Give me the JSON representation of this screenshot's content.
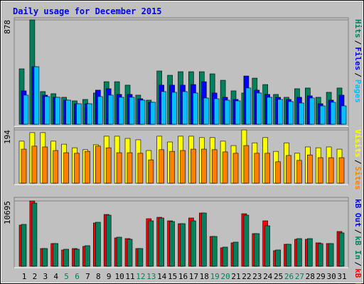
{
  "title": "Daily usage for December 2015",
  "categories": [
    "1",
    "2",
    "3",
    "4",
    "5",
    "6",
    "7",
    "8",
    "9",
    "10",
    "11",
    "12",
    "13",
    "14",
    "15",
    "16",
    "17",
    "18",
    "19",
    "20",
    "21",
    "22",
    "23",
    "24",
    "25",
    "26",
    "27",
    "28",
    "29",
    "30",
    "31"
  ],
  "weekend_indices": [
    4,
    5,
    11,
    12,
    18,
    19,
    25,
    26
  ],
  "weekday_color": "#000000",
  "weekend_color": "#00805c",
  "legend_separator": "/",
  "chart_data": [
    {
      "type": "bar",
      "ylim": [
        0,
        878
      ],
      "yticks": [
        878
      ],
      "legend_reverse": false,
      "series": [
        {
          "name": "Hits",
          "color": "#00805c",
          "values": [
            466,
            878,
            275,
            257,
            227,
            197,
            209,
            263,
            358,
            358,
            329,
            245,
            203,
            448,
            412,
            442,
            442,
            442,
            424,
            370,
            281,
            263,
            388,
            334,
            251,
            227,
            299,
            305,
            227,
            269,
            305
          ]
        },
        {
          "name": "Files",
          "color": "#0000ff",
          "values": [
            281,
            484,
            245,
            227,
            203,
            173,
            173,
            287,
            299,
            251,
            251,
            215,
            185,
            329,
            329,
            329,
            334,
            358,
            263,
            227,
            209,
            406,
            287,
            251,
            227,
            209,
            227,
            239,
            173,
            203,
            245
          ]
        },
        {
          "name": "Pages",
          "color": "#00c0ff",
          "values": [
            245,
            484,
            233,
            227,
            203,
            173,
            173,
            233,
            245,
            227,
            227,
            203,
            185,
            275,
            269,
            275,
            263,
            221,
            215,
            203,
            197,
            305,
            263,
            227,
            209,
            191,
            179,
            221,
            155,
            185,
            155
          ]
        }
      ]
    },
    {
      "type": "bar",
      "ylim": [
        0,
        194
      ],
      "yticks": [
        194
      ],
      "legend_reverse": false,
      "series": [
        {
          "name": "Visits",
          "color": "#ffff00",
          "values": [
            153,
            184,
            184,
            153,
            142,
            129,
            122,
            140,
            171,
            171,
            163,
            158,
            119,
            171,
            150,
            171,
            171,
            166,
            166,
            153,
            137,
            194,
            147,
            166,
            116,
            147,
            109,
            132,
            129,
            132,
            124
          ]
        },
        {
          "name": "Sites",
          "color": "#ff8000",
          "values": [
            124,
            135,
            132,
            119,
            111,
            109,
            116,
            135,
            129,
            111,
            111,
            109,
            85,
            122,
            116,
            119,
            124,
            124,
            122,
            114,
            109,
            137,
            109,
            109,
            78,
            101,
            83,
            103,
            93,
            93,
            93
          ]
        }
      ]
    },
    {
      "type": "bar",
      "ylim": [
        0,
        10695
      ],
      "yticks": [
        10695
      ],
      "legend_reverse": true,
      "series": [
        {
          "name": "kB F",
          "color": "#ff0000",
          "values": [
            6743,
            10695,
            2906,
            3720,
            2674,
            2906,
            3255,
            7091,
            8486,
            4650,
            4534,
            2906,
            7789,
            8021,
            7440,
            6975,
            7905,
            8719,
            4883,
            3023,
            3836,
            8603,
            5348,
            7440,
            2558,
            3604,
            4418,
            4418,
            3836,
            3720,
            5696
          ]
        },
        {
          "name": "kB In",
          "color": "#00805c",
          "values": [
            6859,
            10346,
            2906,
            3720,
            2790,
            2790,
            3371,
            7208,
            8370,
            4766,
            4418,
            2906,
            7440,
            7905,
            7324,
            6975,
            7440,
            8719,
            4883,
            3139,
            3953,
            8370,
            5348,
            6626,
            2674,
            3604,
            4534,
            4534,
            3720,
            3720,
            5464
          ]
        },
        {
          "name": "kB Out",
          "color": "#0000ff",
          "values": [
            null,
            null,
            null,
            null,
            null,
            null,
            null,
            null,
            null,
            null,
            null,
            null,
            null,
            null,
            null,
            null,
            null,
            null,
            null,
            null,
            null,
            null,
            null,
            null,
            null,
            null,
            null,
            null,
            null,
            null,
            null
          ]
        }
      ]
    }
  ]
}
